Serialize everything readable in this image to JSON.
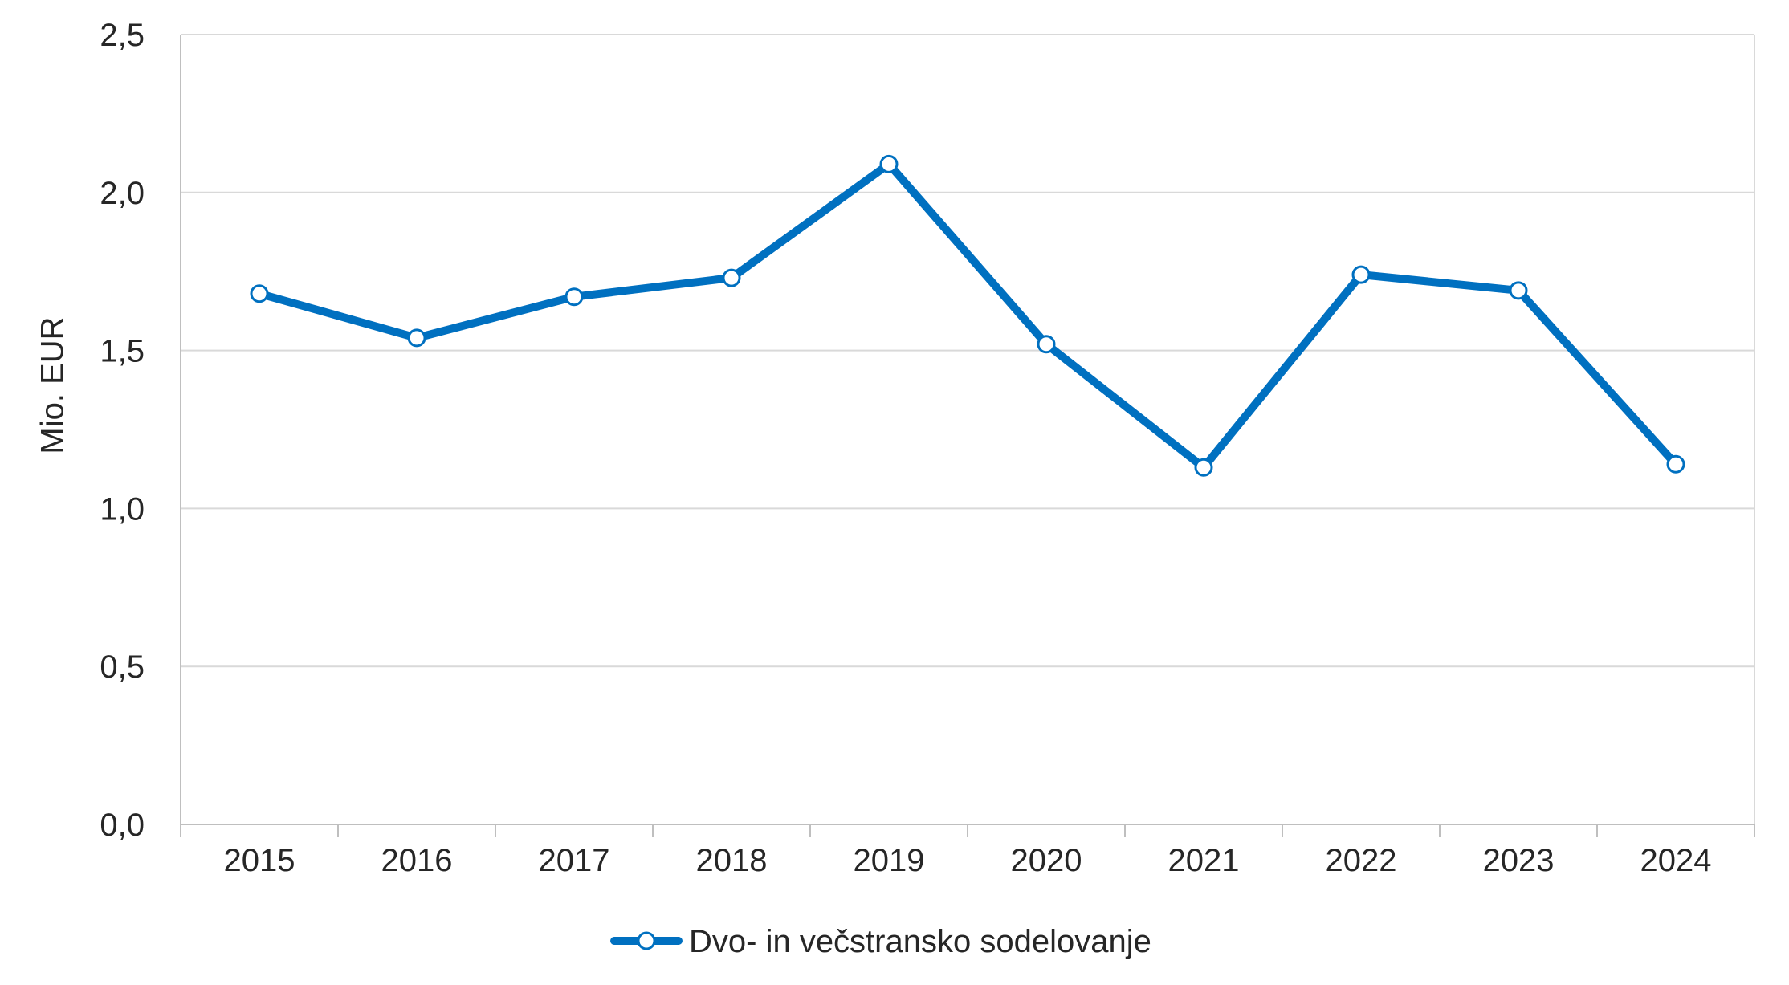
{
  "chart_data": {
    "type": "line",
    "title": "",
    "xlabel": "",
    "ylabel": "Mio. EUR",
    "categories": [
      "2015",
      "2016",
      "2017",
      "2018",
      "2019",
      "2020",
      "2021",
      "2022",
      "2023",
      "2024"
    ],
    "series": [
      {
        "name": "Dvo- in večstransko sodelovanje",
        "values": [
          1.68,
          1.54,
          1.67,
          1.73,
          2.09,
          1.52,
          1.13,
          1.74,
          1.69,
          1.14
        ],
        "color": "#0070C0",
        "marker": "circle-open"
      }
    ],
    "ylim": [
      0,
      2.5
    ],
    "yticks": [
      "0,0",
      "0,5",
      "1,0",
      "1,5",
      "2,0",
      "2,5"
    ],
    "grid": true,
    "legend": "bottom-center"
  }
}
